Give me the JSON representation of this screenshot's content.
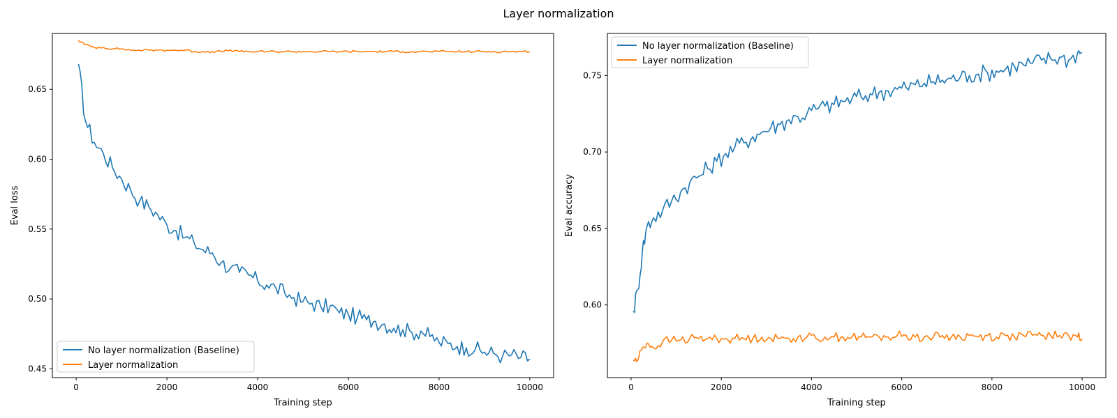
{
  "figure": {
    "title": "Layer normalization"
  },
  "legend": {
    "entries": [
      "No layer normalization (Baseline)",
      "Layer normalization"
    ]
  },
  "colors": {
    "baseline": "#1f77b4",
    "layernorm": "#ff7f0e"
  },
  "chart_data": [
    {
      "type": "line",
      "title": "",
      "xlabel": "Training step",
      "ylabel": "Eval loss",
      "xlim": [
        -525,
        10525
      ],
      "ylim": [
        0.4437,
        0.69
      ],
      "xticks": [
        0,
        2000,
        4000,
        6000,
        8000,
        10000
      ],
      "yticks": [
        0.45,
        0.5,
        0.55,
        0.6,
        0.65
      ],
      "ytick_labels": [
        "0.45",
        "0.50",
        "0.55",
        "0.60",
        "0.65"
      ],
      "grid": false,
      "legend_position": "lower-left",
      "series": [
        {
          "name": "No layer normalization (Baseline)",
          "color": "#1f77b4",
          "x": [
            50,
            200,
            400,
            600,
            800,
            1000,
            1200,
            1400,
            1600,
            1800,
            2000,
            2200,
            2400,
            2600,
            2800,
            3000,
            3200,
            3400,
            3600,
            3800,
            4000,
            4200,
            4400,
            4600,
            4800,
            5000,
            5200,
            5400,
            5600,
            5800,
            6000,
            6200,
            6400,
            6600,
            6800,
            7000,
            7200,
            7400,
            7600,
            7800,
            8000,
            8200,
            8400,
            8600,
            8800,
            9000,
            9200,
            9400,
            9600,
            9800,
            10000
          ],
          "y": [
            0.668,
            0.628,
            0.612,
            0.604,
            0.594,
            0.586,
            0.578,
            0.57,
            0.566,
            0.56,
            0.553,
            0.549,
            0.544,
            0.54,
            0.535,
            0.533,
            0.526,
            0.522,
            0.519,
            0.517,
            0.513,
            0.51,
            0.508,
            0.504,
            0.501,
            0.498,
            0.497,
            0.494,
            0.495,
            0.49,
            0.489,
            0.487,
            0.485,
            0.484,
            0.482,
            0.479,
            0.478,
            0.476,
            0.477,
            0.473,
            0.469,
            0.468,
            0.466,
            0.465,
            0.464,
            0.462,
            0.461,
            0.459,
            0.46,
            0.458,
            0.457
          ]
        },
        {
          "name": "Layer normalization",
          "color": "#ff7f0e",
          "x": [
            50,
            200,
            400,
            600,
            800,
            1000,
            1200,
            1400,
            1600,
            1800,
            2000,
            2200,
            2400,
            2600,
            2800,
            3000,
            3200,
            3400,
            3600,
            3800,
            4000,
            4200,
            4400,
            4600,
            4800,
            5000,
            5200,
            5400,
            5600,
            5800,
            6000,
            6200,
            6400,
            6600,
            6800,
            7000,
            7200,
            7400,
            7600,
            7800,
            8000,
            8200,
            8400,
            8600,
            8800,
            9000,
            9200,
            9400,
            9600,
            9800,
            10000
          ],
          "y": [
            0.685,
            0.682,
            0.68,
            0.68,
            0.679,
            0.679,
            0.678,
            0.678,
            0.678,
            0.678,
            0.678,
            0.678,
            0.678,
            0.677,
            0.677,
            0.677,
            0.677,
            0.678,
            0.677,
            0.677,
            0.677,
            0.677,
            0.677,
            0.677,
            0.677,
            0.677,
            0.677,
            0.677,
            0.677,
            0.677,
            0.677,
            0.677,
            0.677,
            0.677,
            0.677,
            0.677,
            0.677,
            0.677,
            0.677,
            0.677,
            0.677,
            0.677,
            0.677,
            0.677,
            0.677,
            0.677,
            0.677,
            0.677,
            0.677,
            0.677,
            0.677
          ]
        }
      ]
    },
    {
      "type": "line",
      "title": "",
      "xlabel": "Training step",
      "ylabel": "Eval accuracy",
      "xlim": [
        -525,
        10525
      ],
      "ylim": [
        0.5525,
        0.7775
      ],
      "xticks": [
        0,
        2000,
        4000,
        6000,
        8000,
        10000
      ],
      "yticks": [
        0.6,
        0.65,
        0.7,
        0.75
      ],
      "ytick_labels": [
        "0.60",
        "0.65",
        "0.70",
        "0.75"
      ],
      "grid": false,
      "legend_position": "upper-left",
      "series": [
        {
          "name": "No layer normalization (Baseline)",
          "color": "#1f77b4",
          "x": [
            50,
            150,
            250,
            350,
            500,
            700,
            900,
            1100,
            1300,
            1500,
            1700,
            1900,
            2100,
            2300,
            2500,
            2700,
            2900,
            3100,
            3300,
            3500,
            3700,
            3900,
            4100,
            4300,
            4500,
            4700,
            4900,
            5100,
            5300,
            5500,
            5700,
            5900,
            6100,
            6300,
            6500,
            6700,
            6900,
            7100,
            7300,
            7500,
            7700,
            7900,
            8100,
            8300,
            8500,
            8700,
            8900,
            9100,
            9300,
            9500,
            9700,
            9900,
            10000
          ],
          "y": [
            0.596,
            0.61,
            0.635,
            0.651,
            0.657,
            0.662,
            0.668,
            0.674,
            0.68,
            0.684,
            0.689,
            0.694,
            0.699,
            0.703,
            0.706,
            0.71,
            0.713,
            0.716,
            0.718,
            0.721,
            0.723,
            0.725,
            0.728,
            0.73,
            0.731,
            0.733,
            0.735,
            0.736,
            0.738,
            0.739,
            0.74,
            0.741,
            0.742,
            0.744,
            0.745,
            0.746,
            0.747,
            0.748,
            0.749,
            0.75,
            0.751,
            0.752,
            0.753,
            0.754,
            0.756,
            0.757,
            0.758,
            0.76,
            0.761,
            0.762,
            0.76,
            0.765,
            0.765
          ]
        },
        {
          "name": "Layer normalization",
          "color": "#ff7f0e",
          "x": [
            50,
            150,
            250,
            350,
            500,
            700,
            900,
            1100,
            1300,
            1500,
            1700,
            1900,
            2100,
            2300,
            2500,
            2700,
            2900,
            3100,
            3300,
            3500,
            3700,
            3900,
            4100,
            4300,
            4500,
            4700,
            4900,
            5100,
            5300,
            5500,
            5700,
            5900,
            6100,
            6300,
            6500,
            6700,
            6900,
            7100,
            7300,
            7500,
            7700,
            7900,
            8100,
            8300,
            8500,
            8700,
            8900,
            9100,
            9300,
            9500,
            9700,
            9900,
            10000
          ],
          "y": [
            0.564,
            0.564,
            0.572,
            0.575,
            0.572,
            0.576,
            0.577,
            0.577,
            0.578,
            0.578,
            0.578,
            0.578,
            0.578,
            0.578,
            0.578,
            0.578,
            0.579,
            0.578,
            0.578,
            0.578,
            0.579,
            0.579,
            0.578,
            0.579,
            0.579,
            0.579,
            0.579,
            0.579,
            0.579,
            0.579,
            0.579,
            0.58,
            0.58,
            0.579,
            0.579,
            0.579,
            0.58,
            0.579,
            0.579,
            0.58,
            0.579,
            0.58,
            0.579,
            0.58,
            0.579,
            0.58,
            0.58,
            0.58,
            0.58,
            0.58,
            0.58,
            0.579,
            0.578
          ]
        }
      ]
    }
  ]
}
